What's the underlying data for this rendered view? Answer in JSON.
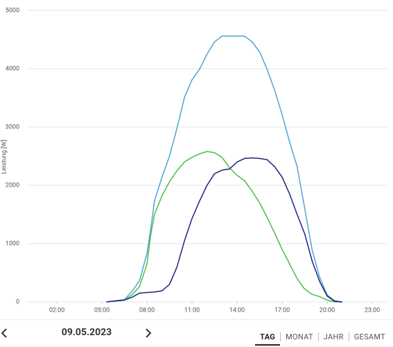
{
  "chart_data": {
    "type": "line",
    "y_label": "Leistung [W]",
    "x": [
      5.3,
      6.5,
      7,
      7.5,
      8,
      8.25,
      8.5,
      9,
      9.5,
      10,
      10.5,
      11,
      11.5,
      12,
      12.5,
      13,
      13.5,
      14,
      14.5,
      15,
      15.5,
      16,
      16.5,
      17,
      17.5,
      18,
      18.5,
      19,
      19.5,
      20,
      20.5,
      21
    ],
    "series": [
      {
        "color": "#4fa3d1",
        "values": [
          0,
          40,
          180,
          360,
          830,
          1250,
          1730,
          2140,
          2500,
          2980,
          3510,
          3810,
          3990,
          4250,
          4460,
          4560,
          4560,
          4560,
          4560,
          4460,
          4290,
          3990,
          3630,
          3210,
          2740,
          2320,
          1610,
          890,
          420,
          120,
          20,
          0
        ]
      },
      {
        "color": "#4cbb47",
        "values": [
          0,
          30,
          120,
          260,
          650,
          1150,
          1500,
          1820,
          2060,
          2250,
          2400,
          2480,
          2540,
          2580,
          2560,
          2480,
          2300,
          2170,
          2080,
          1900,
          1700,
          1450,
          1180,
          900,
          650,
          400,
          220,
          130,
          90,
          30,
          0,
          0
        ]
      },
      {
        "color": "#1a237e",
        "values": [
          0,
          30,
          80,
          150,
          160,
          165,
          170,
          190,
          300,
          600,
          1050,
          1430,
          1730,
          2000,
          2200,
          2260,
          2280,
          2400,
          2460,
          2470,
          2460,
          2440,
          2320,
          2140,
          1850,
          1500,
          1170,
          700,
          350,
          100,
          10,
          0
        ]
      }
    ],
    "xlim": [
      0,
      24
    ],
    "xticks": [
      {
        "value": 2,
        "label": "02:00"
      },
      {
        "value": 5,
        "label": "05:00"
      },
      {
        "value": 8,
        "label": "08:00"
      },
      {
        "value": 11,
        "label": "11:00"
      },
      {
        "value": 14,
        "label": "14:00"
      },
      {
        "value": 17,
        "label": "17:00"
      },
      {
        "value": 20,
        "label": "20:00"
      },
      {
        "value": 23,
        "label": "23:00"
      }
    ],
    "ylim": [
      0,
      5000
    ],
    "yticks": [
      0,
      1000,
      2000,
      3000,
      4000,
      5000
    ],
    "grid": true
  },
  "navigation": {
    "date": "09.05.2023",
    "tabs": [
      "TAG",
      "MONAT",
      "JAHR",
      "GESAMT"
    ]
  }
}
